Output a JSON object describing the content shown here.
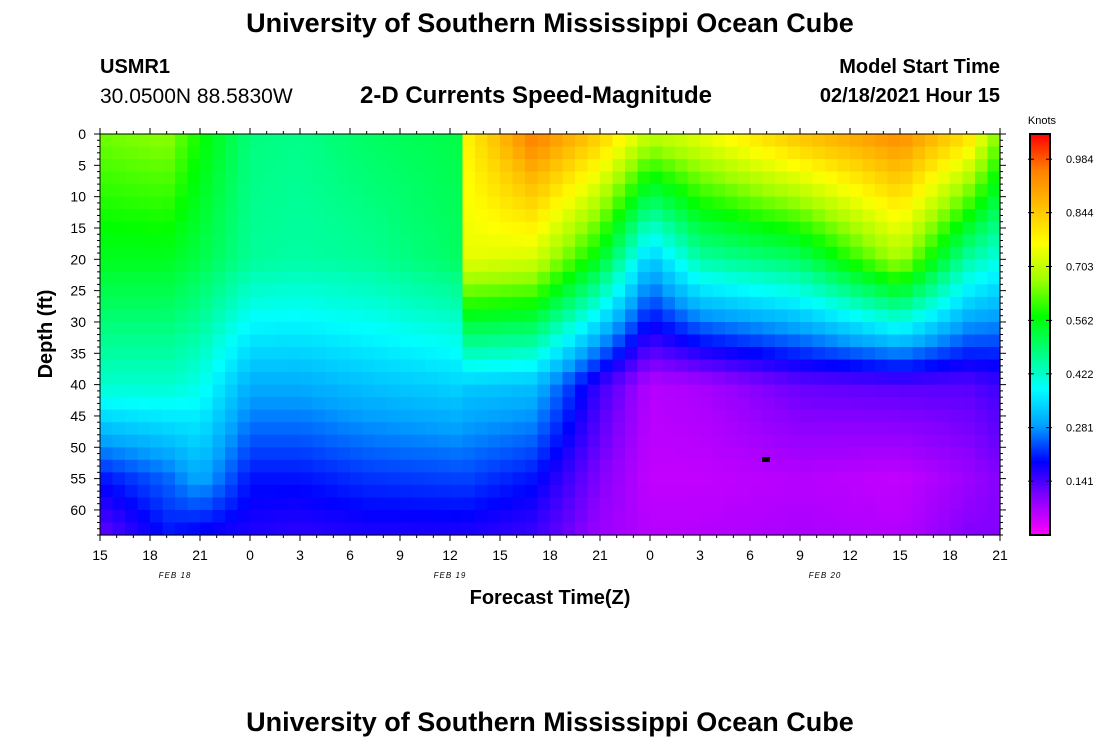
{
  "header": {
    "title": "University of Southern Mississippi Ocean Cube",
    "station_id": "USMR1",
    "coords": "30.0500N 88.5830W",
    "plot_title": "2-D Currents Speed-Magnitude",
    "model_start_label": "Model Start Time",
    "model_start_value": "02/18/2021 Hour 15"
  },
  "footer": {
    "title": "University of Southern Mississippi Ocean Cube"
  },
  "colors": {
    "scale": [
      "#ff00ff",
      "#8a00ff",
      "#0000ff",
      "#00a0ff",
      "#00ffff",
      "#00ff80",
      "#00ff00",
      "#a0ff00",
      "#ffff00",
      "#ffc000",
      "#ff8000",
      "#ff0000"
    ]
  },
  "chart_data": {
    "type": "heatmap",
    "title": "2-D Currents Speed-Magnitude",
    "xlabel": "Forecast Time(Z)",
    "ylabel": "Depth (ft)",
    "x_hours": [
      0,
      54
    ],
    "x_tick_labels": [
      "15",
      "18",
      "21",
      "0",
      "3",
      "6",
      "9",
      "12",
      "15",
      "18",
      "21",
      "0",
      "3",
      "6",
      "9",
      "12",
      "15",
      "18",
      "21"
    ],
    "date_labels": [
      {
        "text": "FEB 18",
        "hour": 4.5
      },
      {
        "text": "FEB 19",
        "hour": 21
      },
      {
        "text": "FEB 20",
        "hour": 43.5
      }
    ],
    "ylim": [
      0,
      64
    ],
    "y_ticks": [
      0,
      5,
      10,
      15,
      20,
      25,
      30,
      35,
      40,
      45,
      50,
      55,
      60
    ],
    "colorbar": {
      "unit": "Knots",
      "min": 0,
      "max": 1.05,
      "ticks": [
        0.984,
        0.844,
        0.703,
        0.562,
        0.422,
        0.281,
        0.141
      ]
    },
    "key_points": [
      {
        "hour": 0,
        "surface": 0.64,
        "d20": 0.55,
        "d40": 0.42,
        "d55": 0.2,
        "d64": 0.12
      },
      {
        "hour": 4,
        "surface": 0.66,
        "d20": 0.55,
        "d40": 0.42,
        "d55": 0.25,
        "d64": 0.2
      },
      {
        "hour": 6,
        "surface": 0.58,
        "d20": 0.52,
        "d40": 0.4,
        "d55": 0.3,
        "d64": 0.18
      },
      {
        "hour": 9,
        "surface": 0.48,
        "d20": 0.46,
        "d40": 0.3,
        "d55": 0.2,
        "d64": 0.17
      },
      {
        "hour": 12,
        "surface": 0.47,
        "d20": 0.45,
        "d40": 0.3,
        "d55": 0.2,
        "d64": 0.16
      },
      {
        "hour": 16,
        "surface": 0.5,
        "d20": 0.46,
        "d40": 0.32,
        "d55": 0.22,
        "d64": 0.17
      },
      {
        "hour": 21.5,
        "surface": 0.52,
        "d20": 0.5,
        "d40": 0.34,
        "d55": 0.23,
        "d64": 0.17
      },
      {
        "hour": 22,
        "surface": 0.78,
        "d20": 0.74,
        "d40": 0.33,
        "d55": 0.23,
        "d64": 0.17
      },
      {
        "hour": 26,
        "surface": 0.96,
        "d20": 0.72,
        "d40": 0.32,
        "d55": 0.2,
        "d64": 0.15
      },
      {
        "hour": 30,
        "surface": 0.84,
        "d20": 0.55,
        "d40": 0.15,
        "d55": 0.1,
        "d64": 0.08
      },
      {
        "hour": 33,
        "surface": 0.7,
        "d20": 0.32,
        "d40": 0.06,
        "d55": 0.05,
        "d64": 0.06
      },
      {
        "hour": 36,
        "surface": 0.74,
        "d20": 0.45,
        "d40": 0.07,
        "d55": 0.05,
        "d64": 0.06
      },
      {
        "hour": 42,
        "surface": 0.86,
        "d20": 0.5,
        "d40": 0.12,
        "d55": 0.06,
        "d64": 0.07
      },
      {
        "hour": 48,
        "surface": 0.94,
        "d20": 0.68,
        "d40": 0.13,
        "d55": 0.05,
        "d64": 0.06
      },
      {
        "hour": 52,
        "surface": 0.82,
        "d20": 0.45,
        "d40": 0.13,
        "d55": 0.08,
        "d64": 0.1
      },
      {
        "hour": 54,
        "surface": 0.64,
        "d20": 0.4,
        "d40": 0.15,
        "d55": 0.1,
        "d64": 0.1
      }
    ]
  }
}
